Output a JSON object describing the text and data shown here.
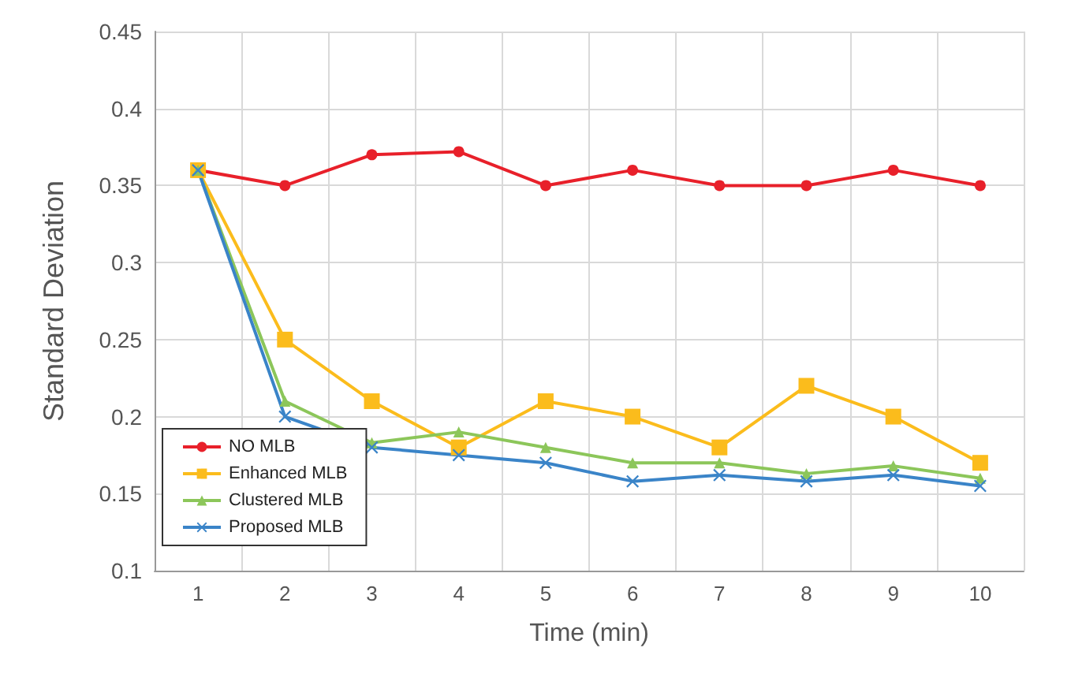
{
  "chart_data": {
    "type": "line",
    "xlabel": "Time (min)",
    "ylabel": "Standard Deviation",
    "categories": [
      "1",
      "2",
      "3",
      "4",
      "5",
      "6",
      "7",
      "8",
      "9",
      "10"
    ],
    "ylim": [
      0.1,
      0.45
    ],
    "yticks": [
      0.1,
      0.15,
      0.2,
      0.25,
      0.3,
      0.35,
      0.4,
      0.45
    ],
    "grid": true,
    "legend": "bottom left",
    "series": [
      {
        "name": "NO MLB",
        "color": "#e8202a",
        "marker": "circle",
        "values": [
          0.36,
          0.35,
          0.37,
          0.372,
          0.35,
          0.36,
          0.35,
          0.35,
          0.36,
          0.35
        ]
      },
      {
        "name": "Enhanced MLB",
        "color": "#fbbc1c",
        "marker": "square",
        "values": [
          0.36,
          0.25,
          0.21,
          0.18,
          0.21,
          0.2,
          0.18,
          0.22,
          0.2,
          0.17
        ]
      },
      {
        "name": "Clustered MLB",
        "color": "#8cc65a",
        "marker": "triangle",
        "values": [
          0.36,
          0.21,
          0.183,
          0.19,
          0.18,
          0.17,
          0.17,
          0.163,
          0.168,
          0.16
        ]
      },
      {
        "name": "Proposed MLB",
        "color": "#3a84c8",
        "marker": "cross",
        "values": [
          0.36,
          0.2,
          0.18,
          0.175,
          0.17,
          0.158,
          0.162,
          0.158,
          0.162,
          0.155
        ]
      }
    ]
  }
}
